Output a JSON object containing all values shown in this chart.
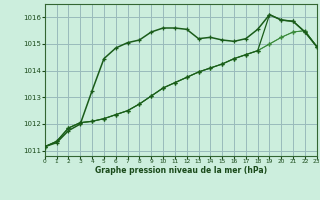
{
  "background_color": "#cceedd",
  "grid_color": "#99bbbb",
  "line_color_dark": "#1a5c1a",
  "line_color_light": "#3a8a3a",
  "x_label": "Graphe pression niveau de la mer (hPa)",
  "xlim": [
    0,
    23
  ],
  "ylim": [
    1010.8,
    1016.5
  ],
  "yticks": [
    1011,
    1012,
    1013,
    1014,
    1015,
    1016
  ],
  "xticks": [
    0,
    1,
    2,
    3,
    4,
    5,
    6,
    7,
    8,
    9,
    10,
    11,
    12,
    13,
    14,
    15,
    16,
    17,
    18,
    19,
    20,
    21,
    22,
    23
  ],
  "series1": [
    1011.15,
    1011.3,
    1011.75,
    1012.0,
    1013.25,
    1014.45,
    1014.85,
    1015.05,
    1015.15,
    1015.45,
    1015.6,
    1015.6,
    1015.55,
    1015.2,
    1015.25,
    1015.15,
    1015.1,
    1015.2,
    1015.55,
    1016.1,
    1015.9,
    1015.85,
    1015.45,
    1014.9
  ],
  "series2": [
    1011.15,
    1011.35,
    1011.85,
    1012.05,
    1012.1,
    1012.2,
    1012.35,
    1012.5,
    1012.75,
    1013.05,
    1013.35,
    1013.55,
    1013.75,
    1013.95,
    1014.1,
    1014.25,
    1014.45,
    1014.6,
    1014.75,
    1016.1,
    1015.9,
    1015.85,
    1015.45,
    1014.9
  ],
  "series3": [
    1011.15,
    1011.35,
    1011.85,
    1012.05,
    1012.1,
    1012.2,
    1012.35,
    1012.5,
    1012.75,
    1013.05,
    1013.35,
    1013.55,
    1013.75,
    1013.95,
    1014.1,
    1014.25,
    1014.45,
    1014.6,
    1014.75,
    1015.0,
    1015.25,
    1015.45,
    1015.5,
    1014.9
  ],
  "series4": [
    1011.15,
    1011.35,
    1011.85,
    1012.05,
    1012.1,
    1012.2,
    1012.35,
    1012.5,
    1012.75,
    1013.05,
    1013.35,
    1013.55,
    1013.75,
    1013.95,
    1014.1,
    1014.25,
    1014.45,
    1014.6,
    1014.75,
    1015.0,
    1015.25,
    1015.45,
    1015.5,
    1014.9
  ]
}
